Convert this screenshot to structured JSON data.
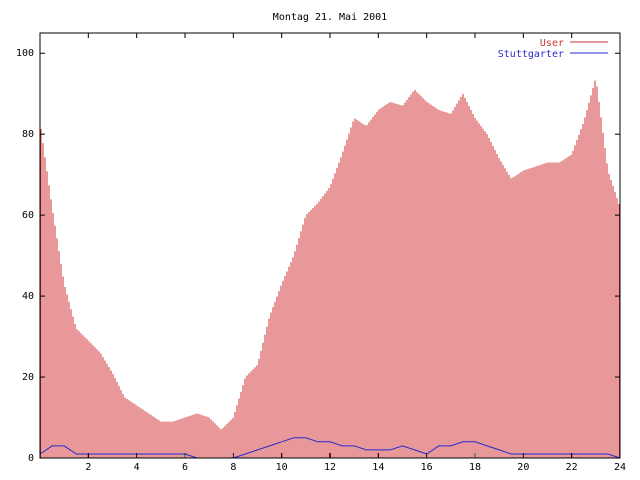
{
  "chart_data": {
    "type": "bar",
    "title": "Montag 21. Mai 2001",
    "xlabel": "",
    "ylabel": "",
    "xlim": [
      0,
      24
    ],
    "ylim": [
      0,
      105
    ],
    "x_ticks": [
      2,
      4,
      6,
      8,
      10,
      12,
      14,
      16,
      18,
      20,
      22,
      24
    ],
    "y_ticks": [
      0,
      20,
      40,
      60,
      80,
      100
    ],
    "legend_position": "top-right",
    "grid": false,
    "series": [
      {
        "name": "User",
        "mark": "impulse",
        "color": "#d03030",
        "x": [
          0,
          0.5,
          1,
          1.5,
          2,
          2.5,
          3,
          3.5,
          4,
          4.5,
          5,
          5.5,
          6,
          6.5,
          7,
          7.5,
          8,
          8.5,
          9,
          9.5,
          10,
          10.5,
          11,
          11.5,
          12,
          12.5,
          13,
          13.5,
          14,
          14.5,
          15,
          15.5,
          16,
          16.5,
          17,
          17.5,
          18,
          18.5,
          19,
          19.5,
          20,
          20.5,
          21,
          21.5,
          22,
          22.5,
          23,
          23.5,
          24
        ],
        "values": [
          83,
          62,
          43,
          32,
          29,
          26,
          21,
          15,
          13,
          11,
          9,
          9,
          10,
          11,
          10,
          7,
          10,
          20,
          23,
          35,
          43,
          50,
          60,
          63,
          67,
          75,
          84,
          82,
          86,
          88,
          87,
          91,
          88,
          86,
          85,
          90,
          84,
          80,
          74,
          69,
          71,
          72,
          73,
          73,
          75,
          83,
          94,
          71,
          62
        ]
      },
      {
        "name": "Stuttgarter",
        "mark": "line",
        "color": "#2a2ad0",
        "x": [
          0,
          0.5,
          1,
          1.5,
          2,
          2.5,
          3,
          3.5,
          4,
          4.5,
          5,
          5.5,
          6,
          6.5,
          7,
          7.5,
          8,
          8.5,
          9,
          9.5,
          10,
          10.5,
          11,
          11.5,
          12,
          12.5,
          13,
          13.5,
          14,
          14.5,
          15,
          15.5,
          16,
          16.5,
          17,
          17.5,
          18,
          18.5,
          19,
          19.5,
          20,
          20.5,
          21,
          21.5,
          22,
          22.5,
          23,
          23.5,
          24
        ],
        "values": [
          1,
          3,
          3,
          1,
          1,
          1,
          1,
          1,
          1,
          1,
          1,
          1,
          1,
          0,
          0,
          0,
          0,
          1,
          2,
          3,
          4,
          5,
          5,
          4,
          4,
          3,
          3,
          2,
          2,
          2,
          3,
          2,
          1,
          3,
          3,
          4,
          4,
          3,
          2,
          1,
          1,
          1,
          1,
          1,
          1,
          1,
          1,
          1,
          0
        ]
      }
    ]
  }
}
